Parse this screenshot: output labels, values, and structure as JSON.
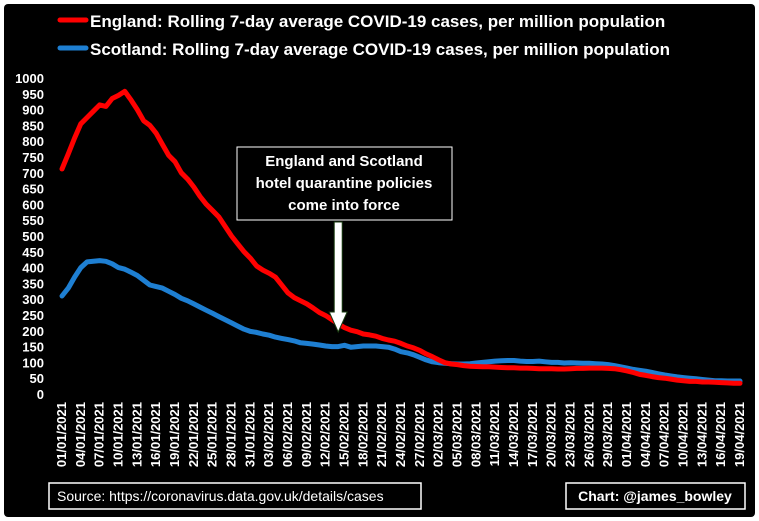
{
  "chart_data": {
    "type": "line",
    "x": [
      "01/01/2021",
      "02/01/2021",
      "03/01/2021",
      "04/01/2021",
      "05/01/2021",
      "06/01/2021",
      "07/01/2021",
      "08/01/2021",
      "09/01/2021",
      "10/01/2021",
      "11/01/2021",
      "12/01/2021",
      "13/01/2021",
      "14/01/2021",
      "15/01/2021",
      "16/01/2021",
      "17/01/2021",
      "18/01/2021",
      "19/01/2021",
      "20/01/2021",
      "21/01/2021",
      "22/01/2021",
      "23/01/2021",
      "24/01/2021",
      "25/01/2021",
      "26/01/2021",
      "27/01/2021",
      "28/01/2021",
      "29/01/2021",
      "30/01/2021",
      "31/01/2021",
      "01/02/2021",
      "02/02/2021",
      "03/02/2021",
      "04/02/2021",
      "05/02/2021",
      "06/02/2021",
      "07/02/2021",
      "08/02/2021",
      "09/02/2021",
      "10/02/2021",
      "11/02/2021",
      "12/02/2021",
      "13/02/2021",
      "14/02/2021",
      "15/02/2021",
      "16/02/2021",
      "17/02/2021",
      "18/02/2021",
      "19/02/2021",
      "20/02/2021",
      "21/02/2021",
      "22/02/2021",
      "23/02/2021",
      "24/02/2021",
      "25/02/2021",
      "26/02/2021",
      "27/02/2021",
      "28/02/2021",
      "01/03/2021",
      "02/03/2021",
      "03/03/2021",
      "04/03/2021",
      "05/03/2021",
      "06/03/2021",
      "07/03/2021",
      "08/03/2021",
      "09/03/2021",
      "10/03/2021",
      "11/03/2021",
      "12/03/2021",
      "13/03/2021",
      "14/03/2021",
      "15/03/2021",
      "16/03/2021",
      "17/03/2021",
      "18/03/2021",
      "19/03/2021",
      "20/03/2021",
      "21/03/2021",
      "22/03/2021",
      "23/03/2021",
      "24/03/2021",
      "25/03/2021",
      "26/03/2021",
      "27/03/2021",
      "28/03/2021",
      "29/03/2021",
      "30/03/2021",
      "31/03/2021",
      "01/04/2021",
      "02/04/2021",
      "03/04/2021",
      "04/04/2021",
      "05/04/2021",
      "06/04/2021",
      "07/04/2021",
      "08/04/2021",
      "09/04/2021",
      "10/04/2021",
      "11/04/2021",
      "12/04/2021",
      "13/04/2021",
      "14/04/2021",
      "15/04/2021",
      "16/04/2021",
      "17/04/2021",
      "18/04/2021",
      "19/04/2021"
    ],
    "xticks": [
      "01/01/2021",
      "04/01/2021",
      "07/01/2021",
      "10/01/2021",
      "13/01/2021",
      "16/01/2021",
      "19/01/2021",
      "22/01/2021",
      "25/01/2021",
      "28/01/2021",
      "31/01/2021",
      "03/02/2021",
      "06/02/2021",
      "09/02/2021",
      "12/02/2021",
      "15/02/2021",
      "18/02/2021",
      "21/02/2021",
      "24/02/2021",
      "27/02/2021",
      "02/03/2021",
      "05/03/2021",
      "08/03/2021",
      "11/03/2021",
      "14/03/2021",
      "17/03/2021",
      "20/03/2021",
      "23/03/2021",
      "26/03/2021",
      "29/03/2021",
      "01/04/2021",
      "04/04/2021",
      "07/04/2021",
      "10/04/2021",
      "13/04/2021",
      "16/04/2021",
      "19/04/2021"
    ],
    "ylim": [
      0,
      1000
    ],
    "yticks": [
      0,
      50,
      100,
      150,
      200,
      250,
      300,
      350,
      400,
      450,
      500,
      550,
      600,
      650,
      700,
      750,
      800,
      850,
      900,
      950,
      1000
    ],
    "grid": false,
    "legend": "top-left",
    "series": [
      {
        "name": "England: Rolling 7-day average COVID-19 cases, per million population",
        "color": "#ff0000",
        "values": [
          712,
          760,
          810,
          855,
          875,
          895,
          915,
          910,
          935,
          945,
          958,
          930,
          900,
          865,
          850,
          825,
          790,
          755,
          735,
          700,
          680,
          655,
          625,
          600,
          580,
          560,
          530,
          500,
          475,
          450,
          430,
          405,
          392,
          382,
          370,
          345,
          320,
          305,
          295,
          285,
          272,
          258,
          248,
          235,
          222,
          210,
          202,
          197,
          190,
          187,
          183,
          176,
          171,
          167,
          160,
          152,
          146,
          138,
          127,
          118,
          108,
          99,
          95,
          93,
          90,
          88,
          87,
          86,
          86,
          85,
          84,
          83,
          83,
          82,
          82,
          81,
          80,
          80,
          80,
          79,
          79,
          80,
          81,
          81,
          82,
          82,
          82,
          81,
          80,
          77,
          73,
          68,
          62,
          59,
          55,
          52,
          50,
          47,
          44,
          42,
          40,
          40,
          38,
          38,
          37,
          36,
          35,
          34,
          34
        ]
      },
      {
        "name": "Scotland: Rolling 7-day average COVID-19 cases, per million population",
        "color": "#1e7fd2",
        "values": [
          310,
          335,
          370,
          400,
          418,
          420,
          422,
          420,
          412,
          400,
          395,
          385,
          375,
          360,
          345,
          340,
          335,
          325,
          315,
          303,
          295,
          285,
          275,
          265,
          255,
          245,
          235,
          225,
          215,
          205,
          198,
          195,
          190,
          186,
          180,
          176,
          172,
          168,
          162,
          160,
          158,
          155,
          152,
          150,
          150,
          154,
          148,
          150,
          152,
          152,
          152,
          150,
          148,
          142,
          134,
          130,
          124,
          116,
          108,
          102,
          99,
          97,
          96,
          95,
          95,
          96,
          98,
          100,
          102,
          104,
          105,
          106,
          106,
          104,
          103,
          103,
          104,
          102,
          100,
          100,
          98,
          99,
          98,
          97,
          97,
          96,
          95,
          93,
          90,
          86,
          82,
          78,
          75,
          72,
          68,
          64,
          60,
          57,
          54,
          52,
          50,
          48,
          46,
          44,
          42,
          42,
          41,
          41,
          41
        ]
      }
    ],
    "annotation": [
      "England and Scotland",
      "hotel quarantine policies",
      "come into force"
    ],
    "annotation_date": "14/02/2021"
  },
  "source_text": "Source: https://coronavirus.data.gov.uk/details/cases",
  "credit_text": "Chart: @james_bowley"
}
